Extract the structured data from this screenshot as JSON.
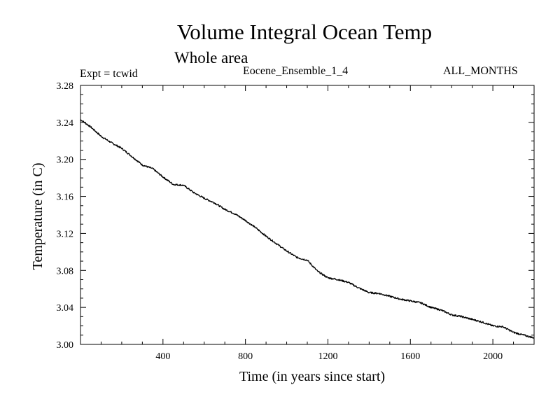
{
  "chart_data": {
    "type": "line",
    "title": "Volume Integral Ocean Temp",
    "subtitle": "Whole area",
    "header_left": "Expt = tcwid",
    "header_center": "Eocene_Ensemble_1_4",
    "header_right": "ALL_MONTHS",
    "xlabel": "Time (in years since start)",
    "ylabel": "Temperature (in C)",
    "xlim": [
      0,
      2200
    ],
    "ylim": [
      3.0,
      3.28
    ],
    "x_ticks": [
      400,
      800,
      1200,
      1600,
      2000
    ],
    "y_ticks": [
      "3.00",
      "3.04",
      "3.08",
      "3.12",
      "3.16",
      "3.20",
      "3.24",
      "3.28"
    ],
    "grid": false,
    "line_color": "#000000",
    "series": [
      {
        "x": [
          0,
          50,
          100,
          150,
          200,
          250,
          300,
          350,
          400,
          450,
          500,
          550,
          600,
          650,
          700,
          750,
          800,
          850,
          900,
          950,
          1000,
          1050,
          1100,
          1150,
          1200,
          1250,
          1300,
          1350,
          1400,
          1450,
          1500,
          1550,
          1600,
          1650,
          1700,
          1750,
          1800,
          1850,
          1900,
          1950,
          2000,
          2050,
          2100,
          2150,
          2200
        ],
        "y": [
          3.243,
          3.235,
          3.225,
          3.218,
          3.212,
          3.203,
          3.194,
          3.19,
          3.181,
          3.173,
          3.172,
          3.164,
          3.158,
          3.153,
          3.146,
          3.141,
          3.134,
          3.126,
          3.117,
          3.109,
          3.101,
          3.094,
          3.091,
          3.079,
          3.072,
          3.07,
          3.067,
          3.061,
          3.056,
          3.055,
          3.052,
          3.049,
          3.047,
          3.045,
          3.04,
          3.037,
          3.032,
          3.03,
          3.027,
          3.024,
          3.02,
          3.019,
          3.013,
          3.01,
          3.007
        ]
      }
    ]
  }
}
